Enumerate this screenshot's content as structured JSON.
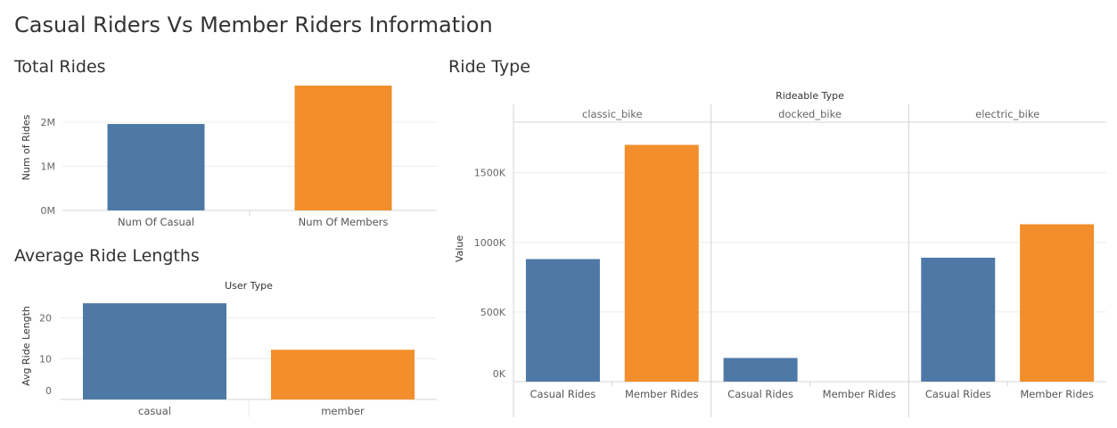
{
  "dashboard": {
    "title": "Casual Riders Vs Member Riders Information"
  },
  "colors": {
    "casual": "#4e79a7",
    "member": "#f28e2b",
    "grid": "#ececec",
    "rule": "#d4d4d4"
  },
  "chart_data": [
    {
      "id": "total_rides",
      "type": "bar",
      "title": "Total Rides",
      "ylabel": "Num of Rides",
      "categories": [
        "Num Of Casual",
        "Num Of Members"
      ],
      "values": [
        1960000,
        2830000
      ],
      "ylim": [
        0,
        2850000
      ],
      "yticks": [
        0,
        1000000,
        2000000
      ],
      "ytick_labels": [
        "0M",
        "1M",
        "2M"
      ]
    },
    {
      "id": "avg_ride_lengths",
      "type": "bar",
      "title": "Average Ride Lengths",
      "header": "User Type",
      "ylabel": "Avg Ride Length",
      "categories": [
        "casual",
        "member"
      ],
      "values": [
        23.6,
        12.2
      ],
      "ylim": [
        0,
        24.5
      ],
      "yticks": [
        0,
        10,
        20
      ],
      "ytick_labels": [
        "0",
        "10",
        "20"
      ]
    },
    {
      "id": "ride_type",
      "type": "bar",
      "title": "Ride Type",
      "header": "Rideable Type",
      "ylabel": "Value",
      "facets": [
        "classic_bike",
        "docked_bike",
        "electric_bike"
      ],
      "categories": [
        "Casual Rides",
        "Member Rides"
      ],
      "values": [
        [
          880000,
          1700000
        ],
        [
          170000,
          0
        ],
        [
          890000,
          1130000
        ]
      ],
      "ylim": [
        0,
        1780000
      ],
      "yticks": [
        0,
        500000,
        1000000,
        1500000
      ],
      "ytick_labels": [
        "0K",
        "500K",
        "1000K",
        "1500K"
      ]
    }
  ]
}
